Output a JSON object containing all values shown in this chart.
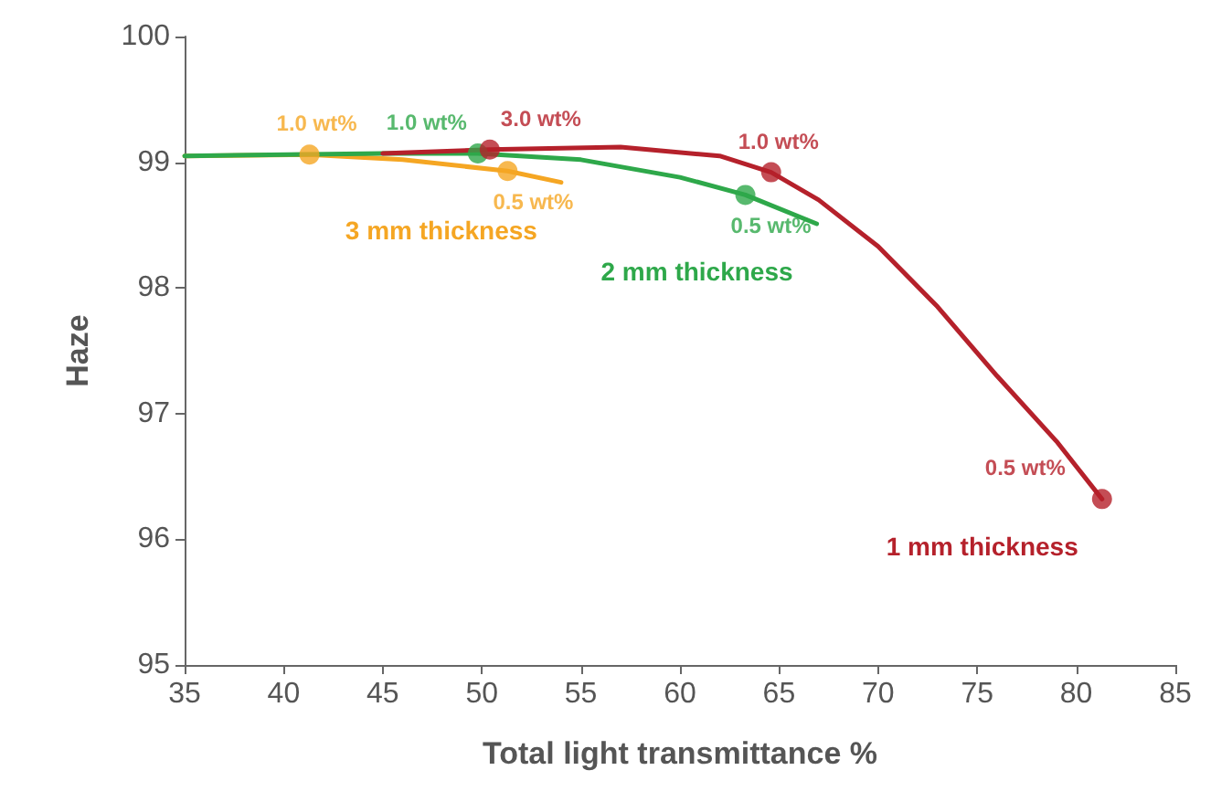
{
  "chart_data": {
    "type": "line",
    "xlabel": "Total light transmittance %",
    "ylabel": "Haze",
    "xlim": [
      35,
      85
    ],
    "xticks": [
      35,
      40,
      45,
      50,
      55,
      60,
      65,
      70,
      75,
      80,
      85
    ],
    "ylim": [
      95,
      100
    ],
    "yticks": [
      95,
      96,
      97,
      98,
      99,
      100
    ],
    "grid": false,
    "legend": false,
    "line_style": "solid",
    "series": [
      {
        "type": "line",
        "name": "3 mm thickness",
        "color": "#f5a623",
        "marker": "none",
        "x": [
          35,
          41.3,
          46,
          51.3,
          54
        ],
        "values": [
          99.05,
          99.06,
          99.02,
          98.93,
          98.84
        ]
      },
      {
        "type": "line",
        "name": "2 mm thickness",
        "color": "#2ea84a",
        "marker": "none",
        "x": [
          35,
          45,
          49.8,
          55,
          60,
          63.3,
          66.9
        ],
        "values": [
          99.05,
          99.07,
          99.07,
          99.02,
          98.88,
          98.74,
          98.51
        ]
      },
      {
        "type": "line",
        "name": "1 mm thickness",
        "color": "#b5212b",
        "marker": "none",
        "x": [
          45,
          50.4,
          57,
          62,
          64.6,
          67,
          70,
          73,
          76,
          79,
          81.3
        ],
        "values": [
          99.07,
          99.1,
          99.12,
          99.05,
          98.92,
          98.7,
          98.33,
          97.85,
          97.3,
          96.78,
          96.32
        ]
      },
      {
        "type": "scatter",
        "color": "#f5a623",
        "marker": "circle",
        "x": [
          41.3,
          51.3
        ],
        "values": [
          99.06,
          98.93
        ]
      },
      {
        "type": "scatter",
        "color": "#2ea84a",
        "marker": "circle",
        "x": [
          49.8,
          63.3
        ],
        "values": [
          99.07,
          98.74
        ]
      },
      {
        "type": "scatter",
        "color": "#b5212b",
        "marker": "circle",
        "x": [
          50.4,
          64.6,
          81.3
        ],
        "values": [
          99.1,
          98.92,
          96.32
        ]
      }
    ],
    "annotations": [
      {
        "text": "1.0 wt%",
        "x": 41.3,
        "y": 99.06
      },
      {
        "text": "0.5 wt%",
        "x": 51.3,
        "y": 98.93
      },
      {
        "text": "1.0 wt%",
        "x": 49.8,
        "y": 99.07
      },
      {
        "text": "0.5 wt%",
        "x": 63.3,
        "y": 98.74
      },
      {
        "text": "3.0 wt%",
        "x": 50.4,
        "y": 99.1
      },
      {
        "text": "1.0 wt%",
        "x": 64.6,
        "y": 98.92
      },
      {
        "text": "0.5 wt%",
        "x": 81.3,
        "y": 96.32
      }
    ]
  }
}
